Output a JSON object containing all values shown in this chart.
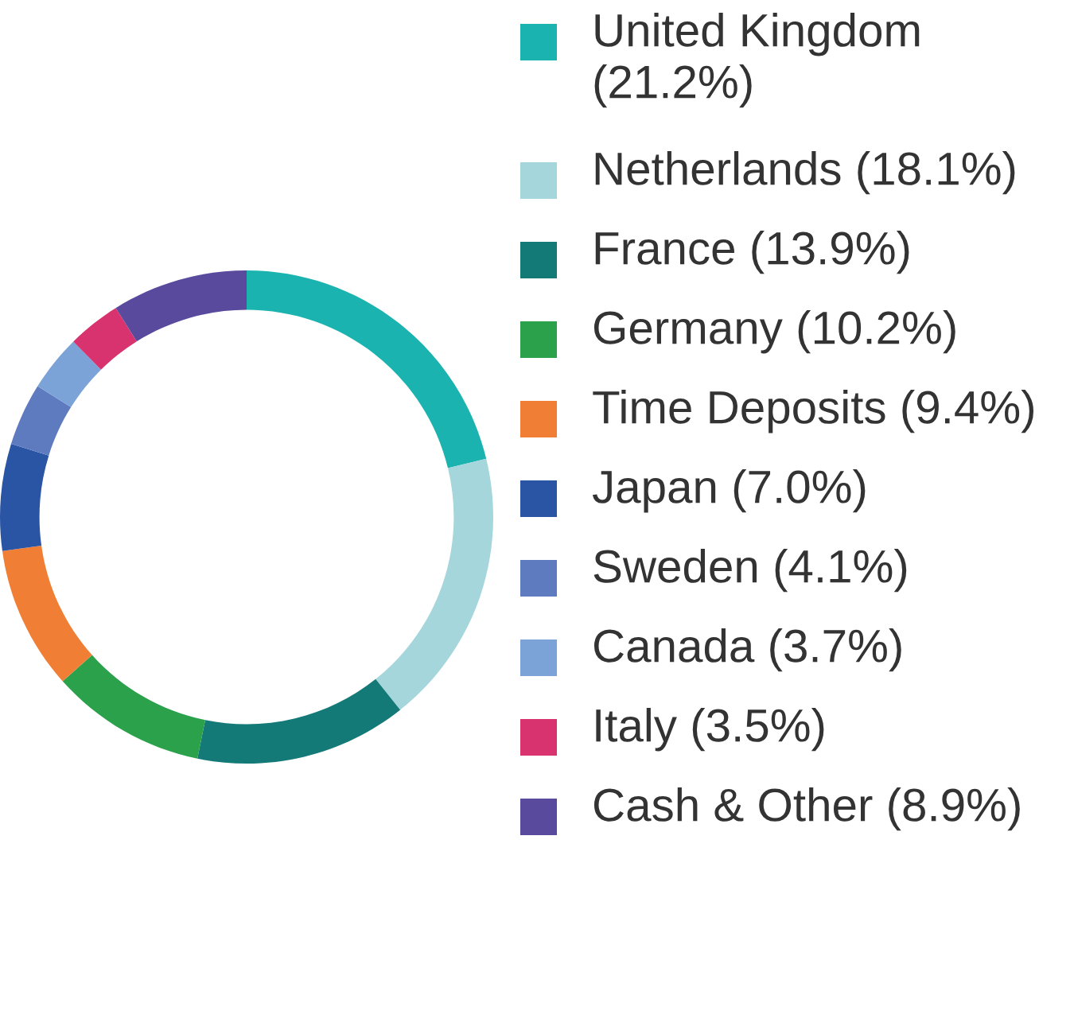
{
  "chart_data": {
    "type": "donut",
    "categories": [
      "United Kingdom (21.2%)",
      "Netherlands (18.1%)",
      "France (13.9%)",
      "Germany (10.2%)",
      "Time Deposits (9.4%)",
      "Japan (7.0%)",
      "Sweden (4.1%)",
      "Canada (3.7%)",
      "Italy (3.5%)",
      "Cash & Other (8.9%)"
    ],
    "values": [
      21.2,
      18.1,
      13.9,
      10.2,
      9.4,
      7.0,
      4.1,
      3.7,
      3.5,
      8.9
    ],
    "colors": [
      "#1ab3b0",
      "#a5d6dc",
      "#147a78",
      "#2aa14a",
      "#f07f35",
      "#2a55a5",
      "#5f7bbf",
      "#7ba3d8",
      "#d8336f",
      "#5a4a9e"
    ],
    "legend": "right"
  }
}
